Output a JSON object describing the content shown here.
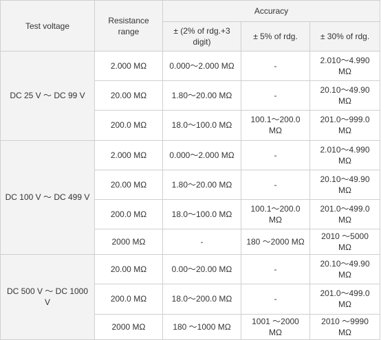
{
  "headers": {
    "test_voltage": "Test voltage",
    "resistance_range": "Resistance range",
    "accuracy": "Accuracy",
    "acc_col1": "± (2% of rdg.+3 digit)",
    "acc_col2": "± 5% of rdg.",
    "acc_col3": "± 30% of rdg."
  },
  "groups": [
    {
      "voltage": "DC 25 V ～ DC 99 V",
      "rows": [
        {
          "range": "2.000 MΩ",
          "a1": "0.000～2.000 MΩ",
          "a2": "-",
          "a3": "2.010～4.990 MΩ"
        },
        {
          "range": "20.00 MΩ",
          "a1": "1.80～20.00 MΩ",
          "a2": "-",
          "a3": "20.10～49.90 MΩ"
        },
        {
          "range": "200.0 MΩ",
          "a1": "18.0～100.0 MΩ",
          "a2": "100.1～200.0 MΩ",
          "a3": "201.0～999.0 MΩ"
        }
      ]
    },
    {
      "voltage": "DC 100 V ～ DC 499 V",
      "rows": [
        {
          "range": "2.000 MΩ",
          "a1": "0.000～2.000 MΩ",
          "a2": "-",
          "a3": "2.010～4.990 MΩ"
        },
        {
          "range": "20.00 MΩ",
          "a1": "1.80～20.00 MΩ",
          "a2": "-",
          "a3": "20.10～49.90 MΩ"
        },
        {
          "range": "200.0 MΩ",
          "a1": "18.0～100.0 MΩ",
          "a2": "100.1～200.0 MΩ",
          "a3": "201.0～499.0 MΩ"
        },
        {
          "range": "2000 MΩ",
          "a1": "-",
          "a2": "180 ～2000 MΩ",
          "a3": "2010 ～5000 MΩ"
        }
      ]
    },
    {
      "voltage": "DC 500 V ～ DC 1000 V",
      "rows": [
        {
          "range": "20.00 MΩ",
          "a1": "0.00～20.00 MΩ",
          "a2": "-",
          "a3": "20.10～49.90 MΩ"
        },
        {
          "range": "200.0 MΩ",
          "a1": "18.0～200.0 MΩ",
          "a2": "-",
          "a3": "201.0～499.0 MΩ"
        },
        {
          "range": "2000 MΩ",
          "a1": "180 ～1000 MΩ",
          "a2": "1001 ～2000 MΩ",
          "a3": "2010 ～9990 MΩ"
        }
      ]
    }
  ]
}
